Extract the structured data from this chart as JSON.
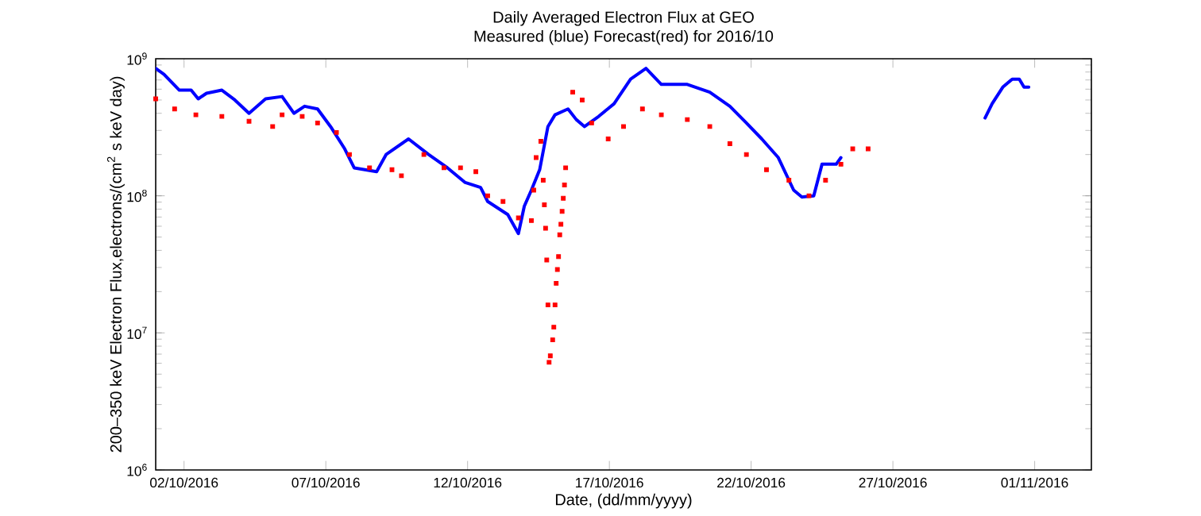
{
  "chart_data": {
    "type": "line",
    "title": "Daily Averaged Electron Flux at GEO",
    "subtitle": "Measured (blue) Forecast(red) for 2016/10",
    "xlabel": "Date, (dd/mm/yyyy)",
    "ylabel": "200–350 keV Electron Flux,electrons/(cm$^{2}$ s keV day)",
    "xlim": [
      "2016-10-01",
      "2016-11-03"
    ],
    "xticks": [
      {
        "value": "2016-10-02",
        "label": "02/10/2016"
      },
      {
        "value": "2016-10-07",
        "label": "07/10/2016"
      },
      {
        "value": "2016-10-12",
        "label": "12/10/2016"
      },
      {
        "value": "2016-10-17",
        "label": "17/10/2016"
      },
      {
        "value": "2016-10-22",
        "label": "22/10/2016"
      },
      {
        "value": "2016-10-27",
        "label": "27/10/2016"
      },
      {
        "value": "2016-11-01",
        "label": "01/11/2016"
      }
    ],
    "ylim": [
      1000000,
      1000000000
    ],
    "yticks": [
      {
        "value": 1000000,
        "label": "10$^{6}$"
      },
      {
        "value": 10000000,
        "label": "10$^{7}$"
      },
      {
        "value": 100000000,
        "label": "10$^{8}$"
      },
      {
        "value": 1000000000,
        "label": "10$^{9}$"
      }
    ],
    "log": "y",
    "series": [
      {
        "color": "#0000ff",
        "marker": "none",
        "x": [
          "2016-10-01T00:00",
          "2016-10-01T07:00",
          "2016-10-01T20:00",
          "2016-10-02T06:00",
          "2016-10-02T12:00",
          "2016-10-02T19:00",
          "2016-10-03T08:00",
          "2016-10-03T19:00",
          "2016-10-04T07:00",
          "2016-10-04T21:00",
          "2016-10-05T11:00",
          "2016-10-05T21:00",
          "2016-10-06T06:00",
          "2016-10-06T17:00",
          "2016-10-07T04:00",
          "2016-10-07T16:00",
          "2016-10-08T00:00",
          "2016-10-08T19:00",
          "2016-10-09T03:00",
          "2016-10-09T22:00",
          "2016-10-10T15:00",
          "2016-10-11T07:00",
          "2016-10-11T22:00",
          "2016-10-12T11:00",
          "2016-10-12T17:00",
          "2016-10-13T10:00",
          "2016-10-13T19:00",
          "2016-10-14T00:00",
          "2016-10-14T06:00",
          "2016-10-14T13:00",
          "2016-10-14T20:00",
          "2016-10-15T02:00",
          "2016-10-15T13:00",
          "2016-10-15T20:00",
          "2016-10-16T03:00",
          "2016-10-16T15:00",
          "2016-10-17T04:00",
          "2016-10-17T18:00",
          "2016-10-18T07:00",
          "2016-10-18T20:00",
          "2016-10-19T18:00",
          "2016-10-20T13:00",
          "2016-10-21T06:00",
          "2016-10-21T20:00",
          "2016-10-22T09:00",
          "2016-10-22T23:00",
          "2016-10-23T12:00",
          "2016-10-23T19:00",
          "2016-10-24T05:00",
          "2016-10-24T12:00",
          "2016-10-25T00:00",
          "2016-10-25T04:00",
          "2016-10-27T12:00",
          "2016-10-30T06:00",
          "2016-10-30T12:00",
          "2016-10-30T21:00",
          "2016-10-31T05:00",
          "2016-10-31T11:00",
          "2016-10-31T15:00",
          "2016-10-31T19:00"
        ],
        "values": [
          850000000,
          770000000,
          590000000,
          590000000,
          510000000,
          560000000,
          590000000,
          500000000,
          400000000,
          510000000,
          530000000,
          400000000,
          450000000,
          430000000,
          320000000,
          220000000,
          160000000,
          150000000,
          200000000,
          260000000,
          200000000,
          160000000,
          125000000,
          115000000,
          91000000,
          73000000,
          53000000,
          84000000,
          110000000,
          155000000,
          320000000,
          390000000,
          430000000,
          360000000,
          320000000,
          380000000,
          470000000,
          710000000,
          850000000,
          650000000,
          650000000,
          570000000,
          450000000,
          340000000,
          260000000,
          190000000,
          110000000,
          98000000,
          100000000,
          170000000,
          170000000,
          190000000,
          null,
          370000000,
          470000000,
          620000000,
          710000000,
          710000000,
          620000000,
          620000000
        ]
      },
      {
        "type": "scatter",
        "color": "#ff0000",
        "marker": "square",
        "x": [
          "2016-10-01T00:00",
          "2016-10-01T16:00",
          "2016-10-02T10:00",
          "2016-10-03T08:00",
          "2016-10-04T07:00",
          "2016-10-05T03:00",
          "2016-10-05T11:00",
          "2016-10-06T04:00",
          "2016-10-06T17:00",
          "2016-10-07T09:00",
          "2016-10-07T20:00",
          "2016-10-08T13:00",
          "2016-10-09T08:00",
          "2016-10-09T16:00",
          "2016-10-10T11:00",
          "2016-10-11T04:00",
          "2016-10-11T18:00",
          "2016-10-12T07:00",
          "2016-10-12T17:00",
          "2016-10-13T06:00",
          "2016-10-13T19:00",
          "2016-10-14T06:00",
          "2016-10-14T08:00",
          "2016-10-14T10:00",
          "2016-10-14T14:00",
          "2016-10-14T16:00",
          "2016-10-14T17:00",
          "2016-10-14T18:00",
          "2016-10-14T19:00",
          "2016-10-14T20:00",
          "2016-10-14T21:00",
          "2016-10-14T22:00",
          "2016-10-15T00:00",
          "2016-10-15T01:00",
          "2016-10-15T02:00",
          "2016-10-15T03:00",
          "2016-10-15T04:00",
          "2016-10-15T05:00",
          "2016-10-15T06:00",
          "2016-10-15T07:00",
          "2016-10-15T08:00",
          "2016-10-15T09:00",
          "2016-10-15T10:00",
          "2016-10-15T11:00",
          "2016-10-15T17:00",
          "2016-10-16T01:00",
          "2016-10-16T09:00",
          "2016-10-16T23:00",
          "2016-10-17T12:00",
          "2016-10-18T04:00",
          "2016-10-18T20:00",
          "2016-10-19T18:00",
          "2016-10-20T13:00",
          "2016-10-21T06:00",
          "2016-10-21T20:00",
          "2016-10-22T13:00",
          "2016-10-23T08:00",
          "2016-10-24T01:00",
          "2016-10-24T15:00",
          "2016-10-25T04:00",
          "2016-10-25T14:00",
          "2016-10-26T03:00"
        ],
        "values": [
          510000000,
          430000000,
          390000000,
          380000000,
          350000000,
          320000000,
          390000000,
          380000000,
          340000000,
          290000000,
          200000000,
          160000000,
          155000000,
          140000000,
          200000000,
          160000000,
          160000000,
          150000000,
          100000000,
          91000000,
          69000000,
          66000000,
          110000000,
          190000000,
          250000000,
          130000000,
          86000000,
          58000000,
          34000000,
          16000000,
          6100000,
          6800000,
          8900000,
          11000000,
          16000000,
          23000000,
          29000000,
          36000000,
          52000000,
          62000000,
          77000000,
          96000000,
          120000000,
          160000000,
          570000000,
          500000000,
          340000000,
          260000000,
          320000000,
          430000000,
          390000000,
          360000000,
          320000000,
          240000000,
          200000000,
          155000000,
          130000000,
          100000000,
          130000000,
          170000000,
          220000000,
          220000000
        ]
      }
    ]
  }
}
